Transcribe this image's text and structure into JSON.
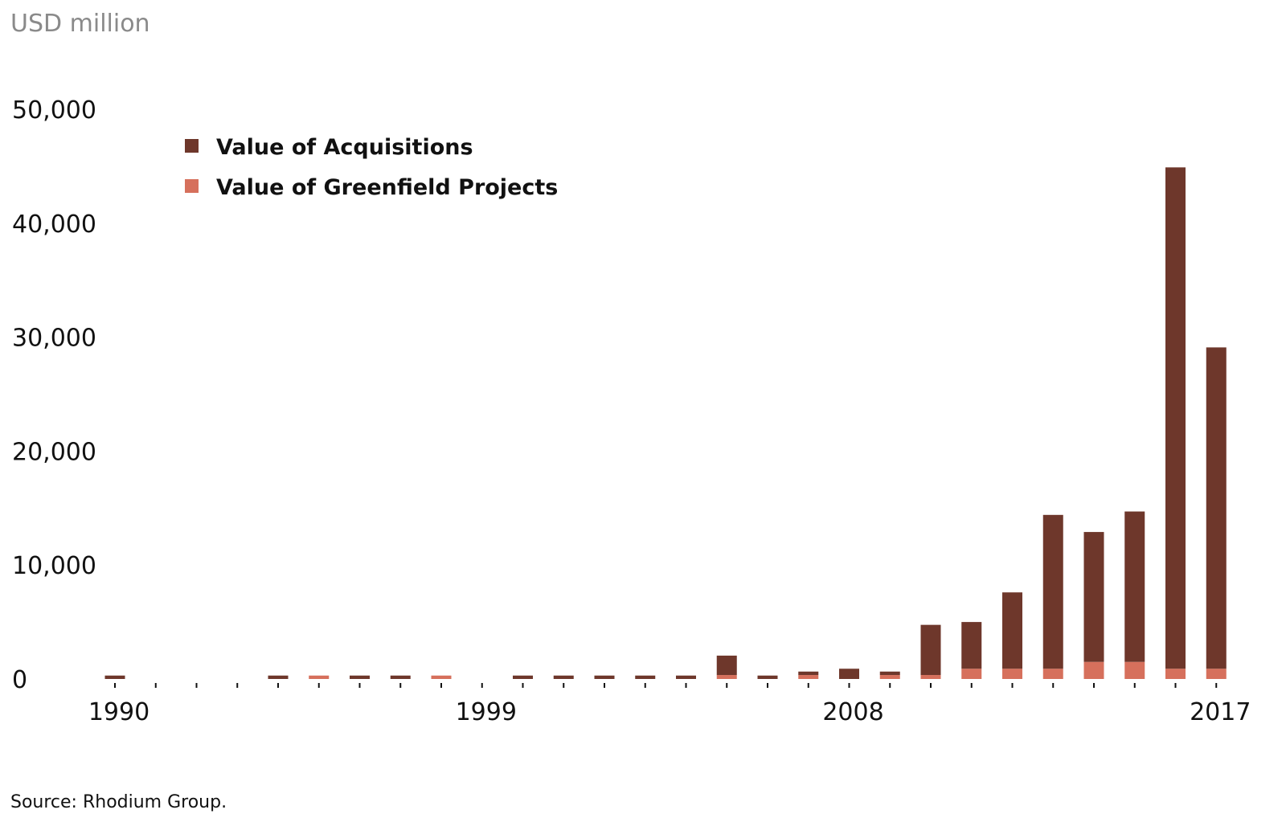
{
  "unit_label": "USD million",
  "source": "Source: Rhodium Group.",
  "colors": {
    "acquisitions": "#6e372b",
    "greenfield": "#d6705c"
  },
  "chart_data": {
    "type": "bar",
    "stacked": true,
    "x": [
      1990,
      1991,
      1992,
      1993,
      1994,
      1995,
      1996,
      1997,
      1998,
      1999,
      2000,
      2001,
      2002,
      2003,
      2004,
      2005,
      2006,
      2007,
      2008,
      2009,
      2010,
      2011,
      2012,
      2013,
      2014,
      2015,
      2016,
      2017
    ],
    "x_tick_labels": [
      "1990",
      "1999",
      "2008",
      "2017"
    ],
    "ylim": [
      0,
      50000
    ],
    "y_ticks": [
      0,
      10000,
      20000,
      30000,
      40000,
      50000
    ],
    "y_tick_labels": [
      "0",
      "10,000",
      "20,000",
      "30,000",
      "40,000",
      "50,000"
    ],
    "series": [
      {
        "name": "Value of Greenfield Projects",
        "values": [
          0,
          0,
          0,
          0,
          0,
          300,
          0,
          0,
          300,
          0,
          0,
          0,
          0,
          0,
          0,
          350,
          0,
          350,
          0,
          350,
          350,
          900,
          900,
          900,
          1500,
          1500,
          900,
          900
        ]
      },
      {
        "name": "Value of Acquisitions",
        "values": [
          300,
          0,
          0,
          0,
          300,
          0,
          300,
          300,
          0,
          0,
          300,
          300,
          300,
          300,
          300,
          1700,
          300,
          300,
          900,
          300,
          4400,
          4100,
          6700,
          13500,
          11400,
          13200,
          44000,
          28200
        ]
      }
    ],
    "legend": {
      "placement": "top-left",
      "order": [
        "Value of Acquisitions",
        "Value of Greenfield Projects"
      ]
    },
    "grid": false
  }
}
